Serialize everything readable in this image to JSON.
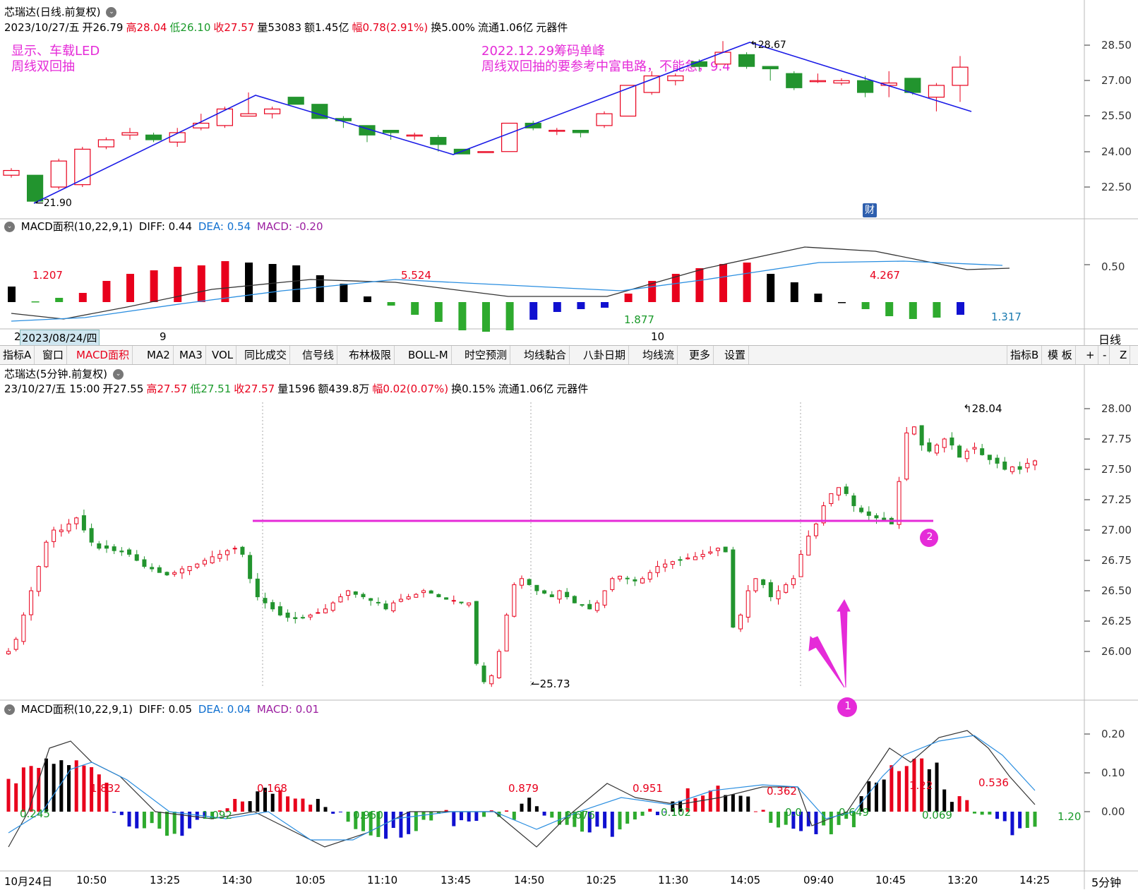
{
  "daily": {
    "header1": {
      "name": "芯瑞达(日线.前复权)"
    },
    "header2": {
      "date": "2023/10/27/五",
      "open": "开26.79",
      "high": "高28.04",
      "low": "低26.10",
      "close": "收27.57",
      "volume": "量53083",
      "amount": "额1.45亿",
      "change": "幅0.78(2.91%)",
      "turnover": "换5.00%",
      "float": "流通1.06亿",
      "industry": "元器件"
    },
    "annotation_left": [
      "显示、车载LED",
      "周线双回抽"
    ],
    "annotation_right": [
      "2022.12.29筹码单峰",
      "周线双回抽的要参考中富电路，不能急，9.4"
    ],
    "high_label": "28.67",
    "low_label": "21.90",
    "fin_badge": "财",
    "y_ticks": [
      "28.50",
      "27.00",
      "25.50",
      "24.00",
      "22.50"
    ]
  },
  "daily_macd": {
    "title": "MACD面积(10,22,9,1)",
    "diff": "DIFF: 0.44",
    "dea": "DEA: 0.54",
    "macd": "MACD: -0.20",
    "labels": [
      "1.207",
      "5.524",
      "1.877",
      "4.267",
      "1.317"
    ],
    "y_tick": "0.50"
  },
  "daily_timeaxis": {
    "left_clip": "2",
    "tooltip": "2023/08/24/四",
    "m9": "9",
    "m10": "10",
    "period": "日线"
  },
  "toolbar": {
    "items": [
      "指标A",
      "窗口",
      "MACD面积",
      "MA2",
      "MA3",
      "VOL",
      "同比成交",
      "信号线",
      "布林极限",
      "BOLL-M",
      "时空预测",
      "均线黏合",
      "八卦日期",
      "均线流",
      "更多",
      "设置"
    ],
    "right": [
      "指标B",
      "模 板",
      "+",
      "-",
      "Z"
    ]
  },
  "m5": {
    "header1": {
      "name": "芯瑞达(5分钟.前复权)"
    },
    "header2": {
      "date": "23/10/27/五 15:00",
      "open": "开27.55",
      "high": "高27.57",
      "low": "低27.51",
      "close": "收27.57",
      "volume": "量1596",
      "amount": "额439.8万",
      "change": "幅0.02(0.07%)",
      "turnover": "换0.15%",
      "float": "流通1.06亿",
      "industry": "元器件"
    },
    "high_label": "28.04",
    "low_label": "25.73",
    "marker1": "1",
    "marker2": "2",
    "y_ticks": [
      "28.00",
      "27.75",
      "27.50",
      "27.25",
      "27.00",
      "26.75",
      "26.50",
      "26.25",
      "26.00"
    ]
  },
  "m5_macd": {
    "title": "MACD面积(10,22,9,1)",
    "diff": "DIFF: 0.05",
    "dea": "DEA: 0.04",
    "macd": "MACD: 0.01",
    "labels": [
      "0.245",
      "1.832",
      "1.092",
      "0.168",
      "0.950",
      "0.879",
      "0.676",
      "0.951",
      "0.102",
      "0.362",
      "0.0",
      "0.649",
      "1.22",
      "0.069",
      "0.536",
      "1.20"
    ],
    "y_ticks": [
      "0.20",
      "0.10",
      "0.00"
    ]
  },
  "m5_timeaxis": {
    "labels": [
      "10月24日",
      "10:50",
      "13:25",
      "14:30",
      "10:05",
      "11:10",
      "13:45",
      "14:50",
      "10:25",
      "11:30",
      "14:05",
      "09:40",
      "10:45",
      "13:20",
      "14:25"
    ],
    "period": "5分钟"
  },
  "colors": {
    "up": "#e8001c",
    "down": "#22942e",
    "blue": "#1010d0",
    "mag": "#e52bd8",
    "diff": "#333333",
    "dea": "#2a8ee0"
  }
}
